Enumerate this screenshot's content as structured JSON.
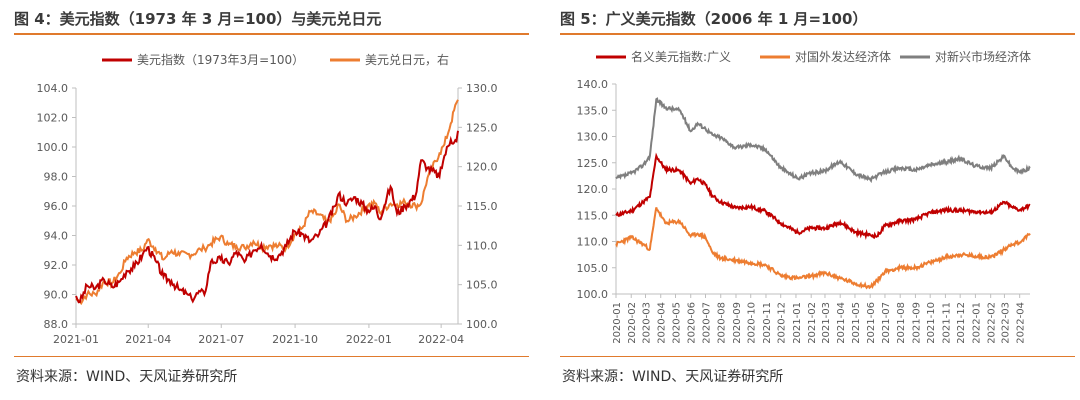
{
  "colors": {
    "accent": "#e07a2d",
    "dxy": "#c00000",
    "usdjpy": "#ed7d31",
    "emerging": "#7f7f7f"
  },
  "left": {
    "title": "图 4：美元指数（1973 年 3 月=100）与美元兑日元",
    "source": "资料来源：WIND、天风证券研究所"
  },
  "right": {
    "title": "图 5：广义美元指数（2006 年 1 月=100）",
    "source": "资料来源：WIND、天风证券研究所"
  },
  "chart_data": [
    {
      "type": "line",
      "title": "图 4：美元指数（1973 年 3 月=100）与美元兑日元",
      "x_tick_labels": [
        "2021-01",
        "2021-04",
        "2021-07",
        "2021-10",
        "2022-01",
        "2022-04"
      ],
      "xlim": [
        "2021-01-01",
        "2022-04-22"
      ],
      "ylim_left": [
        88.0,
        104.0
      ],
      "yticks_left": [
        "88.0",
        "90.0",
        "92.0",
        "94.0",
        "96.0",
        "98.0",
        "100.0",
        "102.0",
        "104.0"
      ],
      "ylim_right": [
        100.0,
        130.0
      ],
      "yticks_right": [
        "100.0",
        "105.0",
        "110.0",
        "115.0",
        "120.0",
        "125.0",
        "130.0"
      ],
      "grid": false,
      "legend_position": "top",
      "series": [
        {
          "name": "美元指数（1973年3月=100）",
          "axis": "left",
          "color": "#c00000",
          "points": [
            [
              "2021-01-01",
              89.9
            ],
            [
              "2021-01-06",
              89.5
            ],
            [
              "2021-01-15",
              90.6
            ],
            [
              "2021-01-25",
              90.4
            ],
            [
              "2021-02-05",
              91.0
            ],
            [
              "2021-02-15",
              90.5
            ],
            [
              "2021-02-25",
              90.9
            ],
            [
              "2021-03-05",
              91.6
            ],
            [
              "2021-03-15",
              91.9
            ],
            [
              "2021-03-25",
              92.7
            ],
            [
              "2021-03-31",
              93.2
            ],
            [
              "2021-04-10",
              92.3
            ],
            [
              "2021-04-20",
              91.2
            ],
            [
              "2021-04-30",
              90.9
            ],
            [
              "2021-05-10",
              90.3
            ],
            [
              "2021-05-20",
              90.0
            ],
            [
              "2021-05-25",
              89.7
            ],
            [
              "2021-06-05",
              90.2
            ],
            [
              "2021-06-10",
              90.0
            ],
            [
              "2021-06-18",
              92.2
            ],
            [
              "2021-06-30",
              92.4
            ],
            [
              "2021-07-10",
              92.1
            ],
            [
              "2021-07-20",
              92.9
            ],
            [
              "2021-07-30",
              92.2
            ],
            [
              "2021-08-10",
              93.0
            ],
            [
              "2021-08-20",
              93.4
            ],
            [
              "2021-08-31",
              92.6
            ],
            [
              "2021-09-10",
              92.6
            ],
            [
              "2021-09-20",
              93.3
            ],
            [
              "2021-09-30",
              94.3
            ],
            [
              "2021-10-10",
              94.1
            ],
            [
              "2021-10-20",
              93.6
            ],
            [
              "2021-10-31",
              94.1
            ],
            [
              "2021-11-10",
              94.9
            ],
            [
              "2021-11-20",
              96.0
            ],
            [
              "2021-11-24",
              96.8
            ],
            [
              "2021-12-05",
              96.2
            ],
            [
              "2021-12-15",
              96.6
            ],
            [
              "2021-12-31",
              95.7
            ],
            [
              "2022-01-10",
              95.9
            ],
            [
              "2022-01-14",
              95.1
            ],
            [
              "2022-01-28",
              97.3
            ],
            [
              "2022-02-05",
              95.5
            ],
            [
              "2022-02-15",
              96.0
            ],
            [
              "2022-02-28",
              96.7
            ],
            [
              "2022-03-07",
              99.1
            ],
            [
              "2022-03-15",
              98.6
            ],
            [
              "2022-03-30",
              98.0
            ],
            [
              "2022-04-05",
              99.4
            ],
            [
              "2022-04-13",
              100.5
            ],
            [
              "2022-04-20",
              100.4
            ],
            [
              "2022-04-22",
              101.1
            ]
          ]
        },
        {
          "name": "美元兑日元，右",
          "axis": "right",
          "color": "#ed7d31",
          "points": [
            [
              "2021-01-01",
              103.2
            ],
            [
              "2021-01-06",
              102.8
            ],
            [
              "2021-01-15",
              103.8
            ],
            [
              "2021-01-25",
              103.8
            ],
            [
              "2021-02-05",
              105.4
            ],
            [
              "2021-02-15",
              105.2
            ],
            [
              "2021-02-25",
              106.5
            ],
            [
              "2021-03-05",
              108.4
            ],
            [
              "2021-03-15",
              109.1
            ],
            [
              "2021-03-25",
              109.4
            ],
            [
              "2021-03-31",
              110.7
            ],
            [
              "2021-04-10",
              109.6
            ],
            [
              "2021-04-20",
              108.2
            ],
            [
              "2021-04-30",
              109.3
            ],
            [
              "2021-05-10",
              108.8
            ],
            [
              "2021-05-20",
              108.9
            ],
            [
              "2021-05-25",
              108.8
            ],
            [
              "2021-06-05",
              109.5
            ],
            [
              "2021-06-10",
              109.6
            ],
            [
              "2021-06-18",
              110.2
            ],
            [
              "2021-06-30",
              111.1
            ],
            [
              "2021-07-10",
              110.1
            ],
            [
              "2021-07-20",
              109.9
            ],
            [
              "2021-07-30",
              109.7
            ],
            [
              "2021-08-10",
              110.5
            ],
            [
              "2021-08-20",
              109.8
            ],
            [
              "2021-08-31",
              110.0
            ],
            [
              "2021-09-10",
              109.9
            ],
            [
              "2021-09-20",
              109.7
            ],
            [
              "2021-09-30",
              111.3
            ],
            [
              "2021-10-10",
              112.2
            ],
            [
              "2021-10-20",
              114.3
            ],
            [
              "2021-10-31",
              113.9
            ],
            [
              "2021-11-10",
              112.9
            ],
            [
              "2021-11-20",
              114.0
            ],
            [
              "2021-11-24",
              115.2
            ],
            [
              "2021-12-05",
              113.1
            ],
            [
              "2021-12-15",
              113.7
            ],
            [
              "2021-12-31",
              115.1
            ],
            [
              "2022-01-10",
              115.3
            ],
            [
              "2022-01-14",
              114.2
            ],
            [
              "2022-01-28",
              115.3
            ],
            [
              "2022-02-05",
              115.2
            ],
            [
              "2022-02-15",
              115.5
            ],
            [
              "2022-02-28",
              115.0
            ],
            [
              "2022-03-07",
              115.3
            ],
            [
              "2022-03-15",
              118.6
            ],
            [
              "2022-03-30",
              121.7
            ],
            [
              "2022-04-05",
              122.8
            ],
            [
              "2022-04-13",
              125.5
            ],
            [
              "2022-04-20",
              128.1
            ],
            [
              "2022-04-22",
              128.5
            ]
          ]
        }
      ]
    },
    {
      "type": "line",
      "title": "图 5：广义美元指数（2006 年 1 月=100）",
      "x_tick_labels": [
        "2020-01",
        "2020-02",
        "2020-03",
        "2020-04",
        "2020-05",
        "2020-06",
        "2020-07",
        "2020-08",
        "2020-09",
        "2020-10",
        "2020-11",
        "2020-12",
        "2021-01",
        "2021-02",
        "2021-03",
        "2021-04",
        "2021-05",
        "2021-06",
        "2021-07",
        "2021-08",
        "2021-09",
        "2021-10",
        "2021-11",
        "2021-12",
        "2022-01",
        "2022-02",
        "2022-03",
        "2022-04"
      ],
      "xlim": [
        "2020-01-01",
        "2022-04-22"
      ],
      "ylim": [
        100.0,
        140.0
      ],
      "yticks": [
        "100.0",
        "105.0",
        "110.0",
        "115.0",
        "120.0",
        "125.0",
        "130.0",
        "135.0",
        "140.0"
      ],
      "grid": false,
      "legend_position": "top",
      "series": [
        {
          "name": "名义美元指数:广义",
          "color": "#c00000",
          "points": [
            [
              "2020-01-01",
              115.0
            ],
            [
              "2020-02-01",
              115.8
            ],
            [
              "2020-02-25",
              117.5
            ],
            [
              "2020-03-10",
              118.5
            ],
            [
              "2020-03-23",
              126.3
            ],
            [
              "2020-04-10",
              123.8
            ],
            [
              "2020-05-10",
              123.5
            ],
            [
              "2020-06-01",
              121.0
            ],
            [
              "2020-06-15",
              122.0
            ],
            [
              "2020-07-01",
              120.8
            ],
            [
              "2020-07-15",
              118.7
            ],
            [
              "2020-08-01",
              117.5
            ],
            [
              "2020-09-01",
              116.4
            ],
            [
              "2020-10-01",
              116.6
            ],
            [
              "2020-11-01",
              115.7
            ],
            [
              "2020-12-01",
              113.5
            ],
            [
              "2021-01-05",
              111.7
            ],
            [
              "2021-02-01",
              112.6
            ],
            [
              "2021-03-01",
              112.5
            ],
            [
              "2021-04-01",
              113.7
            ],
            [
              "2021-05-01",
              111.8
            ],
            [
              "2021-06-01",
              111.2
            ],
            [
              "2021-06-15",
              111.0
            ],
            [
              "2021-07-01",
              113.0
            ],
            [
              "2021-08-01",
              113.9
            ],
            [
              "2021-09-01",
              114.2
            ],
            [
              "2021-10-01",
              115.5
            ],
            [
              "2021-11-01",
              116.0
            ],
            [
              "2021-12-01",
              115.9
            ],
            [
              "2022-01-01",
              115.7
            ],
            [
              "2022-02-01",
              115.5
            ],
            [
              "2022-03-01",
              117.5
            ],
            [
              "2022-03-15",
              116.6
            ],
            [
              "2022-04-01",
              116.0
            ],
            [
              "2022-04-22",
              116.9
            ]
          ]
        },
        {
          "name": "对国外发达经济体",
          "color": "#ed7d31",
          "points": [
            [
              "2020-01-01",
              109.5
            ],
            [
              "2020-02-01",
              110.8
            ],
            [
              "2020-02-25",
              109.5
            ],
            [
              "2020-03-10",
              108.5
            ],
            [
              "2020-03-23",
              116.5
            ],
            [
              "2020-04-10",
              113.5
            ],
            [
              "2020-05-10",
              113.8
            ],
            [
              "2020-06-01",
              111.0
            ],
            [
              "2020-06-15",
              111.5
            ],
            [
              "2020-07-01",
              110.8
            ],
            [
              "2020-07-15",
              107.9
            ],
            [
              "2020-08-01",
              106.8
            ],
            [
              "2020-09-01",
              106.4
            ],
            [
              "2020-10-01",
              106.0
            ],
            [
              "2020-11-01",
              105.5
            ],
            [
              "2020-12-01",
              103.5
            ],
            [
              "2021-01-05",
              103.0
            ],
            [
              "2021-02-01",
              103.4
            ],
            [
              "2021-03-01",
              104.0
            ],
            [
              "2021-04-01",
              103.0
            ],
            [
              "2021-05-01",
              102.0
            ],
            [
              "2021-06-01",
              101.3
            ],
            [
              "2021-06-15",
              102.5
            ],
            [
              "2021-07-01",
              104.3
            ],
            [
              "2021-08-01",
              105.0
            ],
            [
              "2021-09-01",
              105.0
            ],
            [
              "2021-10-01",
              106.0
            ],
            [
              "2021-11-01",
              107.0
            ],
            [
              "2021-12-01",
              107.5
            ],
            [
              "2022-01-01",
              107.2
            ],
            [
              "2022-02-01",
              107.0
            ],
            [
              "2022-03-01",
              108.5
            ],
            [
              "2022-03-15",
              109.5
            ],
            [
              "2022-04-01",
              109.8
            ],
            [
              "2022-04-22",
              111.5
            ]
          ]
        },
        {
          "name": "对新兴市场经济体",
          "color": "#7f7f7f",
          "points": [
            [
              "2020-01-01",
              122.0
            ],
            [
              "2020-02-01",
              123.0
            ],
            [
              "2020-02-25",
              124.5
            ],
            [
              "2020-03-10",
              126.3
            ],
            [
              "2020-03-23",
              137.1
            ],
            [
              "2020-04-10",
              135.5
            ],
            [
              "2020-05-10",
              135.0
            ],
            [
              "2020-06-01",
              131.0
            ],
            [
              "2020-06-15",
              132.5
            ],
            [
              "2020-07-01",
              131.5
            ],
            [
              "2020-07-15",
              130.3
            ],
            [
              "2020-08-01",
              129.8
            ],
            [
              "2020-09-01",
              127.8
            ],
            [
              "2020-10-01",
              128.5
            ],
            [
              "2020-11-01",
              127.5
            ],
            [
              "2020-12-01",
              124.0
            ],
            [
              "2021-01-05",
              122.0
            ],
            [
              "2021-02-01",
              123.0
            ],
            [
              "2021-03-01",
              123.5
            ],
            [
              "2021-04-01",
              125.3
            ],
            [
              "2021-05-01",
              123.0
            ],
            [
              "2021-06-01",
              121.8
            ],
            [
              "2021-06-15",
              122.5
            ],
            [
              "2021-07-01",
              123.2
            ],
            [
              "2021-08-01",
              124.0
            ],
            [
              "2021-09-01",
              123.6
            ],
            [
              "2021-10-01",
              124.6
            ],
            [
              "2021-11-01",
              125.1
            ],
            [
              "2021-12-01",
              125.8
            ],
            [
              "2022-01-01",
              124.4
            ],
            [
              "2022-02-01",
              124.0
            ],
            [
              "2022-03-01",
              126.3
            ],
            [
              "2022-03-15",
              124.2
            ],
            [
              "2022-04-01",
              123.2
            ],
            [
              "2022-04-22",
              124.0
            ]
          ]
        }
      ]
    }
  ]
}
